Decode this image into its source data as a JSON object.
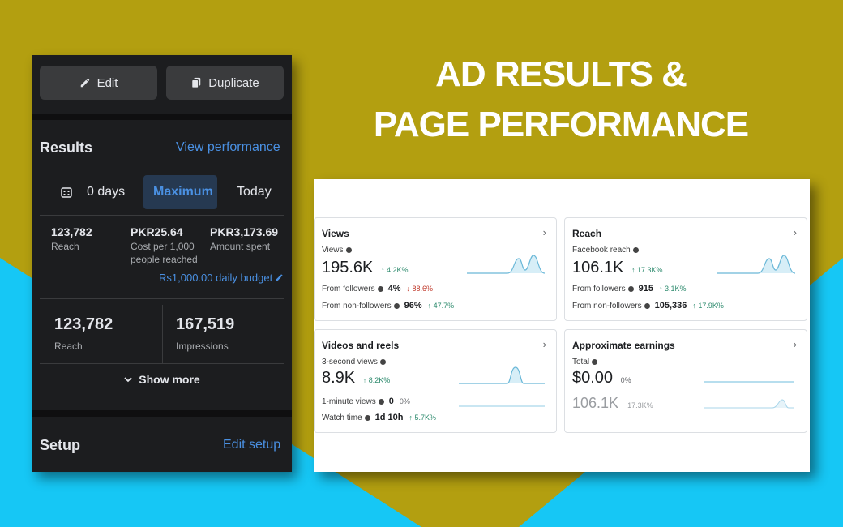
{
  "colors": {
    "background_olive": "#b39f10",
    "background_cyan": "#16c7f5",
    "phone_bg": "#1c1d1f",
    "accent_blue": "#4a90e2",
    "positive_green": "#2e8b6e",
    "negative_red": "#c0392b"
  },
  "headline": {
    "line1": "AD RESULTS &",
    "line2": "PAGE PERFORMANCE"
  },
  "ad_panel": {
    "edit_label": "Edit",
    "duplicate_label": "Duplicate",
    "results_title": "Results",
    "view_performance": "View performance",
    "date_range": {
      "days": "0 days",
      "maximum": "Maximum",
      "today": "Today"
    },
    "metrics": [
      {
        "value": "123,782",
        "label": "Reach"
      },
      {
        "value": "PKR25.64",
        "label": "Cost per 1,000 people reached"
      },
      {
        "value": "PKR3,173.69",
        "label": "Amount spent"
      }
    ],
    "daily_budget": "Rs1,000.00 daily budget",
    "summary": [
      {
        "value": "123,782",
        "label": "Reach"
      },
      {
        "value": "167,519",
        "label": "Impressions"
      }
    ],
    "show_more": "Show more",
    "setup_title": "Setup",
    "edit_setup": "Edit setup"
  },
  "insights": {
    "views": {
      "title": "Views",
      "metric_label": "Views",
      "value": "195.6K",
      "delta": "↑ 4.2K%",
      "followers_label": "From followers",
      "followers_value": "4%",
      "followers_delta": "↓ 88.6%",
      "nonfollowers_label": "From non-followers",
      "nonfollowers_value": "96%",
      "nonfollowers_delta": "↑ 47.7%"
    },
    "reach": {
      "title": "Reach",
      "metric_label": "Facebook reach",
      "value": "106.1K",
      "delta": "↑ 17.3K%",
      "followers_label": "From followers",
      "followers_value": "915",
      "followers_delta": "↑ 3.1K%",
      "nonfollowers_label": "From non-followers",
      "nonfollowers_value": "105,336",
      "nonfollowers_delta": "↑ 17.9K%"
    },
    "videos": {
      "title": "Videos and reels",
      "metric_label": "3-second views",
      "value": "8.9K",
      "delta": "↑ 8.2K%",
      "minute_label": "1-minute views",
      "minute_value": "0",
      "minute_delta": "0%",
      "watch_label": "Watch time",
      "watch_value": "1d 10h",
      "watch_delta": "↑ 5.7K%"
    },
    "earnings": {
      "title": "Approximate earnings",
      "metric_label": "Total",
      "value": "$0.00",
      "delta": "0%",
      "ghost_value": "106.1K",
      "ghost_delta": "17.3K%"
    }
  }
}
